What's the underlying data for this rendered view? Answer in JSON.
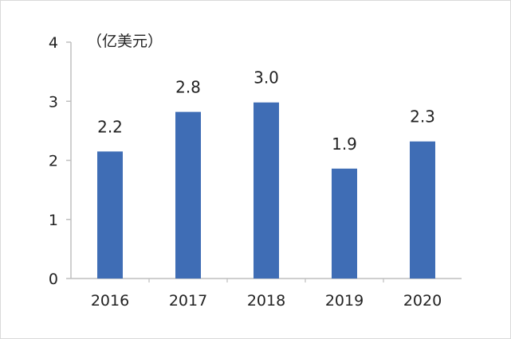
{
  "chart_data": {
    "type": "bar",
    "categories": [
      "2016",
      "2017",
      "2018",
      "2019",
      "2020"
    ],
    "values": [
      2.15,
      2.82,
      2.98,
      1.86,
      2.32
    ],
    "data_labels": [
      "2.2",
      "2.8",
      "3.0",
      "1.9",
      "2.3"
    ],
    "title": "",
    "xlabel": "",
    "ylabel": "",
    "unit": "（亿美元）",
    "y_ticks": [
      "0",
      "1",
      "2",
      "3",
      "4"
    ],
    "ylim": [
      0,
      4
    ],
    "grid": false,
    "legend": "none",
    "bar_color": "#3f6db5",
    "axis_color": "#bfbfbf"
  }
}
